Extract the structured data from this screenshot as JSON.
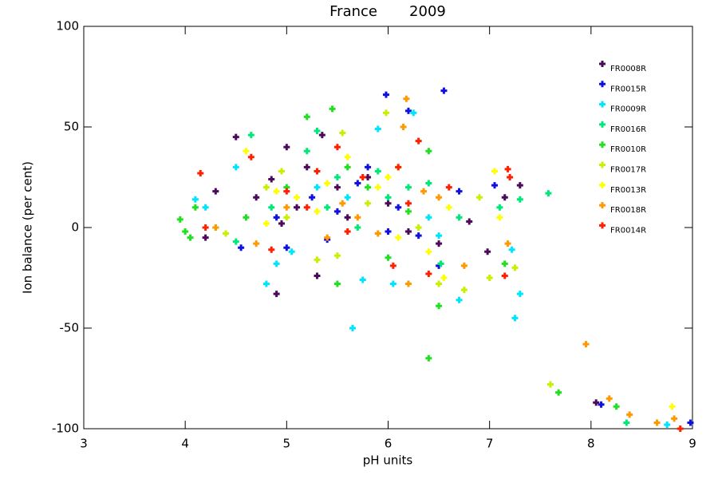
{
  "chart_data": {
    "type": "scatter",
    "title": "France       2009",
    "x_label": "pH units",
    "y_label": "Ion balance (per cent)",
    "xlim": [
      3,
      9
    ],
    "xticks": [
      3,
      4,
      5,
      6,
      7,
      8,
      9
    ],
    "ylim": [
      -100,
      100
    ],
    "yticks": [
      -100,
      -50,
      0,
      50,
      100
    ],
    "legend": "top-right",
    "series": [
      {
        "name": "FR0008R",
        "color": "#4b0a5a",
        "x": [
          4.2,
          4.3,
          4.5,
          4.7,
          4.85,
          4.9,
          5.0,
          5.1,
          5.3,
          5.35,
          5.5,
          5.6,
          5.8,
          6.0,
          6.2,
          6.5,
          6.8,
          6.98,
          7.15,
          7.3,
          8.05,
          4.95,
          5.2
        ],
        "y": [
          -5,
          18,
          45,
          15,
          24,
          -33,
          40,
          10,
          -24,
          46,
          20,
          5,
          25,
          12,
          -2,
          -8,
          3,
          -12,
          15,
          21,
          -87,
          2,
          30
        ]
      },
      {
        "name": "FR0015R",
        "color": "#1010e0",
        "x": [
          4.55,
          4.9,
          5.0,
          5.25,
          5.4,
          5.7,
          5.98,
          6.2,
          6.55,
          6.5,
          6.3,
          6.1,
          5.5,
          6.7,
          7.05,
          8.1,
          8.98,
          6.0,
          5.8
        ],
        "y": [
          -10,
          5,
          -10,
          15,
          -6,
          22,
          66,
          58,
          68,
          -19,
          -4,
          10,
          8,
          18,
          21,
          -88,
          -97,
          -2,
          30
        ]
      },
      {
        "name": "FR0009R",
        "color": "#00e5ff",
        "x": [
          4.1,
          4.2,
          4.5,
          4.8,
          4.9,
          5.05,
          5.3,
          5.65,
          5.75,
          5.9,
          6.05,
          6.25,
          6.5,
          6.7,
          7.25,
          7.3,
          7.22,
          8.75,
          5.6,
          6.4
        ],
        "y": [
          14,
          10,
          30,
          -28,
          -18,
          -12,
          20,
          -50,
          -26,
          49,
          -28,
          57,
          -4,
          -36,
          -45,
          -33,
          -11,
          -98,
          15,
          5
        ]
      },
      {
        "name": "FR0016R",
        "color": "#00e87a",
        "x": [
          4.5,
          4.65,
          5.2,
          5.3,
          5.5,
          5.7,
          6.0,
          6.2,
          6.52,
          6.7,
          7.3,
          7.58,
          8.35,
          5.9,
          5.4,
          6.4,
          4.85,
          7.1
        ],
        "y": [
          -7,
          46,
          38,
          48,
          25,
          0,
          15,
          20,
          -18,
          5,
          14,
          17,
          -97,
          28,
          10,
          22,
          10,
          10
        ]
      },
      {
        "name": "FR0010R",
        "color": "#20e020",
        "x": [
          3.95,
          4.0,
          4.05,
          4.1,
          4.3,
          4.6,
          5.0,
          5.2,
          5.45,
          5.5,
          5.8,
          6.0,
          6.4,
          6.5,
          6.4,
          7.15,
          7.68,
          8.25,
          5.6,
          6.2
        ],
        "y": [
          4,
          -2,
          -5,
          10,
          0,
          5,
          20,
          55,
          59,
          -28,
          20,
          -15,
          -65,
          -39,
          38,
          -18,
          -82,
          -89,
          30,
          8
        ]
      },
      {
        "name": "FR0017R",
        "color": "#c8f000",
        "x": [
          4.4,
          4.8,
          5.0,
          5.3,
          5.5,
          5.55,
          5.98,
          6.1,
          6.5,
          6.75,
          7.0,
          7.25,
          7.6,
          5.8,
          6.3,
          4.95,
          6.9
        ],
        "y": [
          -3,
          20,
          5,
          -16,
          -14,
          47,
          57,
          30,
          -28,
          -31,
          -25,
          -20,
          -78,
          12,
          0,
          28,
          15
        ]
      },
      {
        "name": "FR0013R",
        "color": "#ffff00",
        "x": [
          4.6,
          4.8,
          5.1,
          5.3,
          5.6,
          5.9,
          6.1,
          6.4,
          6.55,
          7.1,
          7.05,
          8.8,
          5.4,
          6.0,
          6.6,
          4.9
        ],
        "y": [
          38,
          2,
          15,
          8,
          35,
          20,
          -5,
          -12,
          -25,
          5,
          28,
          -89,
          22,
          25,
          10,
          18
        ]
      },
      {
        "name": "FR0018R",
        "color": "#ff9900",
        "x": [
          4.3,
          4.7,
          5.0,
          5.4,
          5.7,
          6.18,
          6.2,
          6.15,
          6.5,
          6.75,
          7.18,
          7.95,
          8.18,
          8.38,
          8.65,
          8.82,
          5.9,
          6.35,
          5.55
        ],
        "y": [
          0,
          -8,
          10,
          -5,
          5,
          64,
          -28,
          50,
          15,
          -19,
          -8,
          -58,
          -85,
          -93,
          -97,
          -95,
          -3,
          18,
          12
        ]
      },
      {
        "name": "FR0014R",
        "color": "#ff2000",
        "x": [
          4.15,
          4.2,
          4.65,
          4.85,
          5.0,
          5.2,
          5.5,
          5.75,
          6.05,
          6.1,
          6.3,
          6.4,
          7.15,
          7.18,
          7.2,
          8.88,
          5.6,
          6.2,
          5.3,
          6.6
        ],
        "y": [
          27,
          0,
          35,
          -11,
          18,
          10,
          40,
          25,
          -19,
          30,
          43,
          -23,
          -24,
          29,
          25,
          -100,
          -2,
          12,
          28,
          20
        ]
      }
    ]
  }
}
